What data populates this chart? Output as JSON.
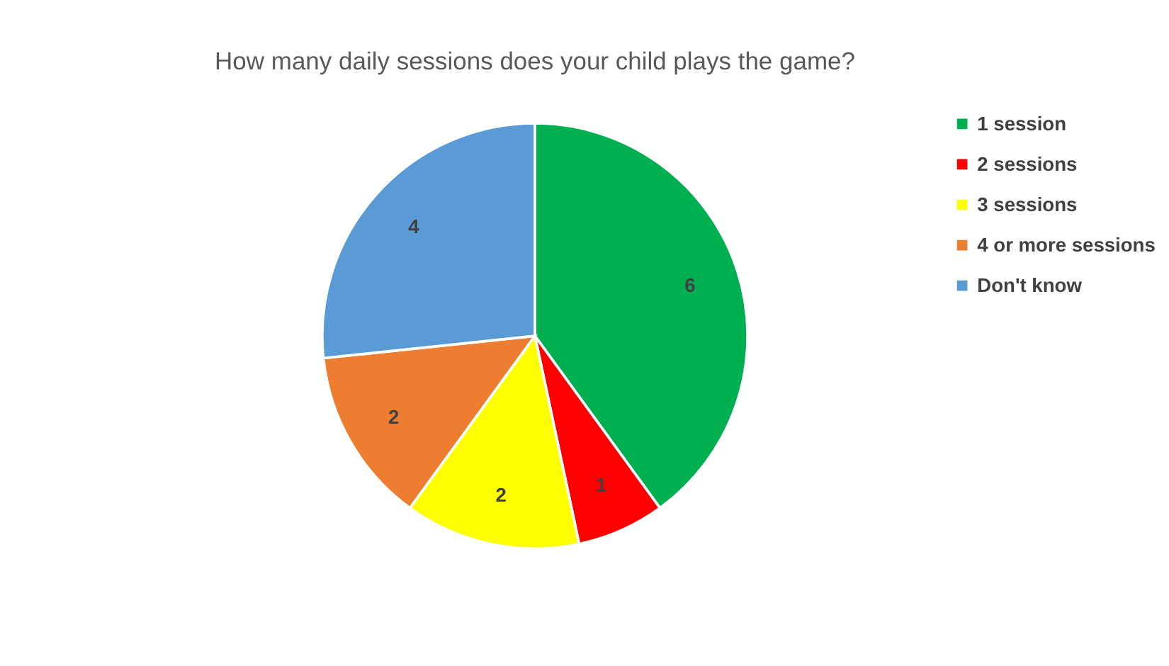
{
  "chart_data": {
    "type": "pie",
    "title": "How many daily sessions does your child plays the game?",
    "categories": [
      "1 session",
      "2 sessions",
      "3 sessions",
      "4 or more sessions",
      "Don't know"
    ],
    "values": [
      6,
      1,
      2,
      2,
      4
    ],
    "colors": [
      "#00b050",
      "#ff0000",
      "#ffff00",
      "#ed7d31",
      "#5b9bd5"
    ],
    "data_labels": true,
    "legend": "right"
  }
}
